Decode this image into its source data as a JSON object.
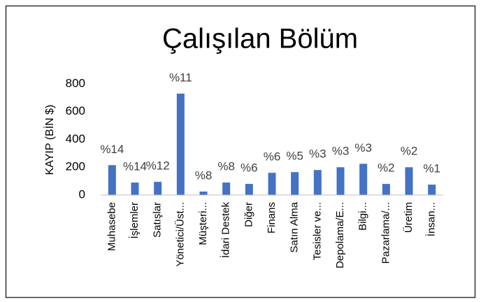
{
  "chart_data": {
    "type": "bar",
    "title": "Çalışılan Bölüm",
    "ylabel": "KAYIP (BİN $)",
    "categories": [
      "Muhasebe",
      "İşlemler",
      "Satışlar",
      "Yönetici/Üst...",
      "Müşteri...",
      "İdari Destek",
      "Diğer",
      "Finans",
      "Satın Alma",
      "Tesisler ve...",
      "Depolama/E...",
      "Bilgi...",
      "Pazarlama/...",
      "Üretim",
      "İnsan..."
    ],
    "values": [
      215,
      90,
      95,
      730,
      25,
      90,
      80,
      160,
      165,
      180,
      200,
      225,
      80,
      200,
      75
    ],
    "percent_labels": [
      "%14",
      "%14",
      "%12",
      "%11",
      "%8",
      "%8",
      "%6",
      "%6",
      "%5",
      "%3",
      "%3",
      "%3",
      "%2",
      "%2",
      "%1"
    ],
    "color": "#4472c4",
    "ylim": [
      0,
      800
    ],
    "yticks": [
      0,
      200,
      400,
      600,
      800
    ],
    "grid": false
  }
}
